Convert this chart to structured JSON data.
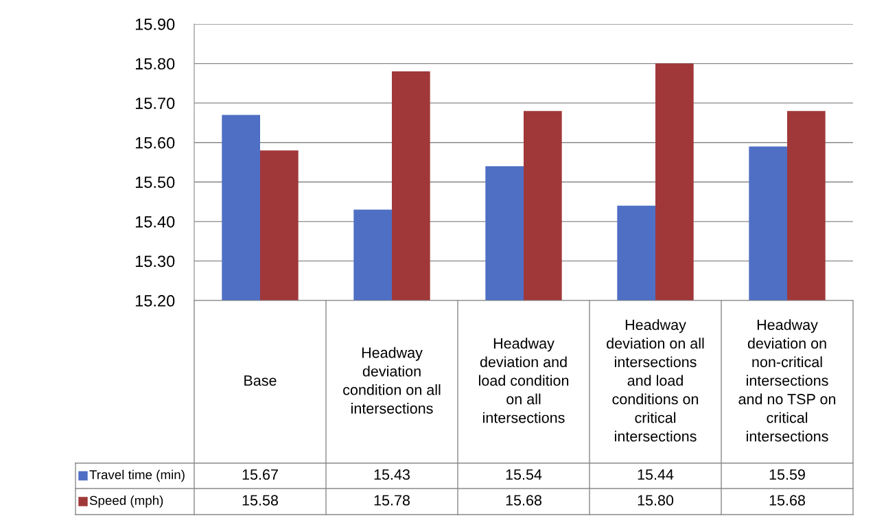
{
  "chart_data": {
    "type": "bar",
    "categories": [
      "Base",
      "Headway\ndeviation\ncondition on all\nintersections",
      "Headway\ndeviation and\nload condition\non all\nintersections",
      "Headway\ndeviation on all\nintersections\nand load\nconditions on\ncritical\nintersections",
      "Headway\ndeviation on\nnon-critical\nintersections\nand no TSP on\ncritical\nintersections"
    ],
    "series": [
      {
        "name": "Travel time (min)",
        "color": "#4f6fc4",
        "values": [
          15.67,
          15.43,
          15.54,
          15.44,
          15.59
        ],
        "value_labels": [
          "15.67",
          "15.43",
          "15.54",
          "15.44",
          "15.59"
        ]
      },
      {
        "name": "Speed (mph)",
        "color": "#a0383a",
        "values": [
          15.58,
          15.78,
          15.68,
          15.8,
          15.68
        ],
        "value_labels": [
          "15.58",
          "15.78",
          "15.68",
          "15.80",
          "15.68"
        ]
      }
    ],
    "ylim": [
      15.2,
      15.9
    ],
    "yticks": [
      {
        "value": 15.2,
        "label": "15.20"
      },
      {
        "value": 15.3,
        "label": "15.30"
      },
      {
        "value": 15.4,
        "label": "15.40"
      },
      {
        "value": 15.5,
        "label": "15.50"
      },
      {
        "value": 15.6,
        "label": "15.60"
      },
      {
        "value": 15.7,
        "label": "15.70"
      },
      {
        "value": 15.8,
        "label": "15.80"
      },
      {
        "value": 15.9,
        "label": "15.90"
      }
    ],
    "grid": "y",
    "legend": "bottom left"
  }
}
